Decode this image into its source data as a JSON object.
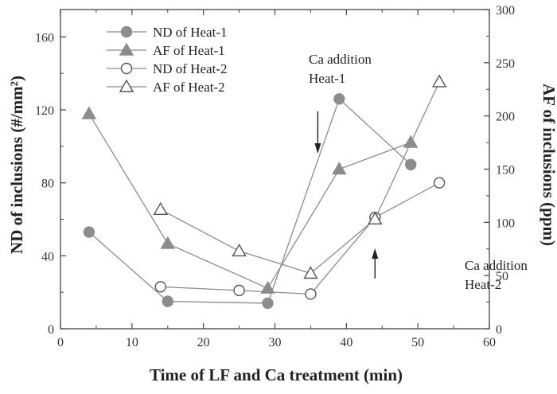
{
  "chart_data": {
    "type": "line",
    "xlabel": "Time of LF and Ca treatment (min)",
    "ylabel_left": "ND of inclusions (#/mm²)",
    "ylabel_right": "AF of inclusions (ppm)",
    "xlim": [
      0,
      60
    ],
    "ylim_left": [
      0,
      175
    ],
    "ylim_right": [
      0,
      300
    ],
    "xticks": [
      0,
      10,
      20,
      30,
      40,
      50,
      60
    ],
    "yticks_left": [
      0,
      40,
      80,
      120,
      160
    ],
    "yticks_right": [
      0,
      50,
      100,
      150,
      200,
      250,
      300
    ],
    "grid": false,
    "legend_position": "top-left",
    "series": [
      {
        "name": "ND of Heat-1",
        "axis": "left",
        "marker": "circle",
        "filled": true,
        "x": [
          4,
          15,
          29,
          39,
          49
        ],
        "y": [
          53,
          15,
          14,
          126,
          90
        ]
      },
      {
        "name": "AF of Heat-1",
        "axis": "right",
        "marker": "triangle",
        "filled": true,
        "x": [
          4,
          15,
          29,
          39,
          49
        ],
        "y": [
          202,
          80,
          38,
          150,
          175
        ]
      },
      {
        "name": "ND of Heat-2",
        "axis": "left",
        "marker": "circle",
        "filled": false,
        "x": [
          14,
          25,
          35,
          44,
          53
        ],
        "y": [
          23,
          21,
          19,
          61,
          80
        ]
      },
      {
        "name": "AF of Heat-2",
        "axis": "right",
        "marker": "triangle",
        "filled": false,
        "x": [
          14,
          25,
          35,
          44,
          53
        ],
        "y": [
          112,
          73,
          52,
          103,
          232
        ]
      }
    ],
    "annotations": [
      {
        "lines": [
          "Ca addition",
          "Heat-1"
        ],
        "arrow_x": 36,
        "arrow_direction": "down"
      },
      {
        "lines": [
          "Ca addition",
          "Heat-2"
        ],
        "arrow_x": 44,
        "arrow_direction": "up"
      }
    ],
    "colors": {
      "filled_marker": "#8c8c8c",
      "line": "#8c8c8c",
      "axis": "#444444"
    }
  }
}
